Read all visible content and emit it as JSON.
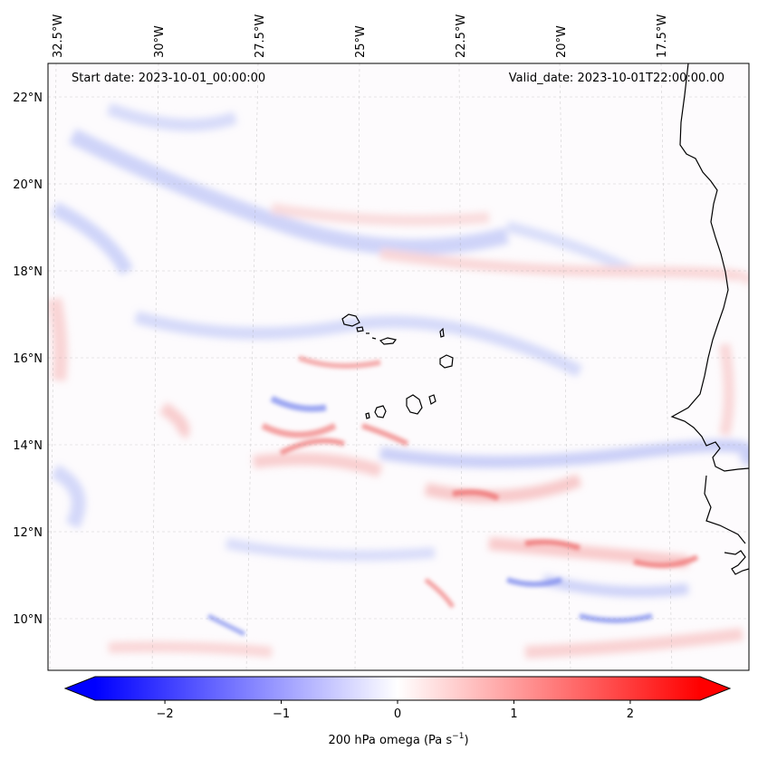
{
  "header": {
    "start_date": "Start date: 2023-10-01_00:00:00",
    "valid_date": "Valid_date: 2023-10-01T22:00:00.00"
  },
  "map": {
    "lon_labels": [
      "32.5°W",
      "30°W",
      "27.5°W",
      "25°W",
      "22.5°W",
      "20°W",
      "17.5°W"
    ],
    "lat_labels": [
      "22°N",
      "20°N",
      "18°N",
      "16°N",
      "14°N",
      "12°N",
      "10°N"
    ],
    "field": "200 hPa omega",
    "colormap": "bwr"
  },
  "colorbar": {
    "label_main": "200 hPa omega (Pa s",
    "label_exp": "−1",
    "label_close": ")",
    "ticks": [
      "−2",
      "−1",
      "0",
      "1",
      "2"
    ],
    "tick_values": [
      -2,
      -1,
      0,
      1,
      2
    ],
    "range": [
      -2.6,
      2.6
    ],
    "extend": "both",
    "colors": {
      "negative": "#0000ff",
      "zero": "#ffffff",
      "positive": "#ff0000"
    }
  }
}
